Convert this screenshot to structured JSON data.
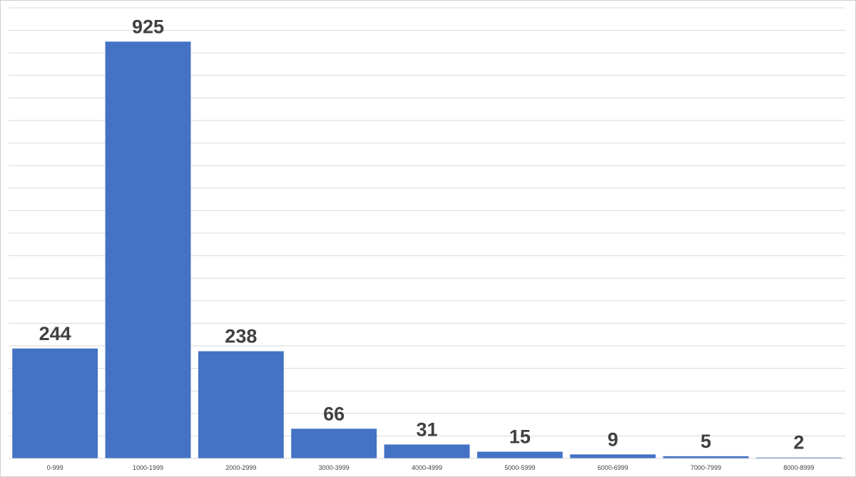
{
  "chart_data": {
    "type": "bar",
    "categories": [
      "0-999",
      "1000-1999",
      "2000-2999",
      "3000-3999",
      "4000-4999",
      "5000-5999",
      "6000-6999",
      "7000-7999",
      "8000-8999"
    ],
    "values": [
      244,
      925,
      238,
      66,
      31,
      15,
      9,
      5,
      2
    ],
    "color": "#4472c4",
    "ylim": [
      0,
      1000
    ],
    "yticks": [
      0,
      50,
      100,
      150,
      200,
      250,
      300,
      350,
      400,
      450,
      500,
      550,
      600,
      650,
      700,
      750,
      800,
      850,
      900,
      950,
      1000
    ],
    "grid": true
  }
}
